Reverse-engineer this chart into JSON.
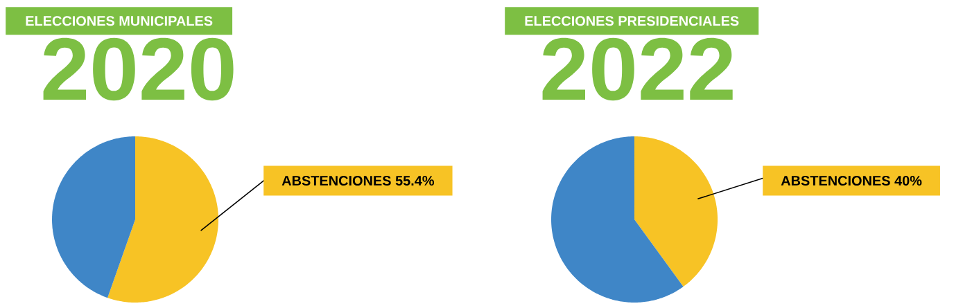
{
  "chart_data": [
    {
      "type": "pie",
      "title": "ELECCIONES MUNICIPALES",
      "subtitle": "2020",
      "categories": [
        "ABSTENCIONES",
        null
      ],
      "values": [
        55.4,
        44.6
      ],
      "colors": [
        "#f7c325",
        "#3f86c7"
      ],
      "value_labels": [
        "55.4%",
        null
      ]
    },
    {
      "type": "pie",
      "title": "ELECCIONES PRESIDENCIALES",
      "subtitle": "2022",
      "categories": [
        "ABSTENCIONES",
        null
      ],
      "values": [
        40,
        60
      ],
      "colors": [
        "#f7c325",
        "#3f86c7"
      ],
      "value_labels": [
        "40%",
        null
      ]
    }
  ]
}
